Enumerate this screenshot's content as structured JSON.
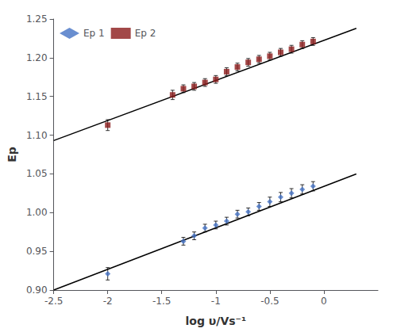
{
  "chart_data": {
    "type": "scatter",
    "xlabel": "log υ/Vs⁻¹",
    "ylabel": "Ep",
    "xlim": [
      -2.5,
      0.5
    ],
    "ylim": [
      0.9,
      1.25
    ],
    "xticks": [
      -2.5,
      -2,
      -1.5,
      -1,
      -0.5,
      0
    ],
    "yticks": [
      {
        "value": 0.9,
        "label": "0.90"
      },
      {
        "value": 0.95,
        "label": "0.95"
      },
      {
        "value": 1.0,
        "label": "1.00"
      },
      {
        "value": 1.05,
        "label": "1.05"
      },
      {
        "value": 1.1,
        "label": "1.10"
      },
      {
        "value": 1.15,
        "label": "1.15"
      },
      {
        "value": 1.2,
        "label": "1.20"
      },
      {
        "value": 1.25,
        "label": "1.25"
      }
    ],
    "grid": false,
    "legend": "upper left",
    "series": [
      {
        "name": "Ep 1",
        "type": "scatter",
        "color": "#4472C4",
        "marker": "diamond",
        "x": [
          -2.0,
          -1.3,
          -1.2,
          -1.1,
          -1.0,
          -0.9,
          -0.8,
          -0.7,
          -0.6,
          -0.5,
          -0.4,
          -0.3,
          -0.2,
          -0.1
        ],
        "values": [
          0.921,
          0.963,
          0.97,
          0.98,
          0.984,
          0.989,
          0.998,
          1.001,
          1.008,
          1.014,
          1.02,
          1.025,
          1.03,
          1.034
        ],
        "errors": [
          0.008,
          0.005,
          0.005,
          0.005,
          0.005,
          0.005,
          0.005,
          0.005,
          0.005,
          0.006,
          0.006,
          0.006,
          0.006,
          0.006
        ]
      },
      {
        "name": "Ep 2",
        "type": "scatter",
        "color": "#8B1A1A",
        "marker": "square",
        "x": [
          -2.0,
          -1.4,
          -1.3,
          -1.2,
          -1.1,
          -1.0,
          -0.9,
          -0.8,
          -0.7,
          -0.6,
          -0.5,
          -0.4,
          -0.3,
          -0.2,
          -0.1
        ],
        "values": [
          1.113,
          1.152,
          1.16,
          1.163,
          1.168,
          1.172,
          1.182,
          1.188,
          1.194,
          1.198,
          1.202,
          1.207,
          1.211,
          1.217,
          1.221
        ],
        "errors": [
          0.007,
          0.006,
          0.005,
          0.005,
          0.005,
          0.005,
          0.005,
          0.005,
          0.005,
          0.005,
          0.005,
          0.005,
          0.005,
          0.005,
          0.005
        ]
      },
      {
        "type": "line",
        "color": "#000000",
        "x": [
          -2.5,
          0.3
        ],
        "values": [
          0.9,
          1.05
        ]
      },
      {
        "type": "line",
        "color": "#000000",
        "x": [
          -2.5,
          0.3
        ],
        "values": [
          1.093,
          1.238
        ]
      }
    ]
  }
}
